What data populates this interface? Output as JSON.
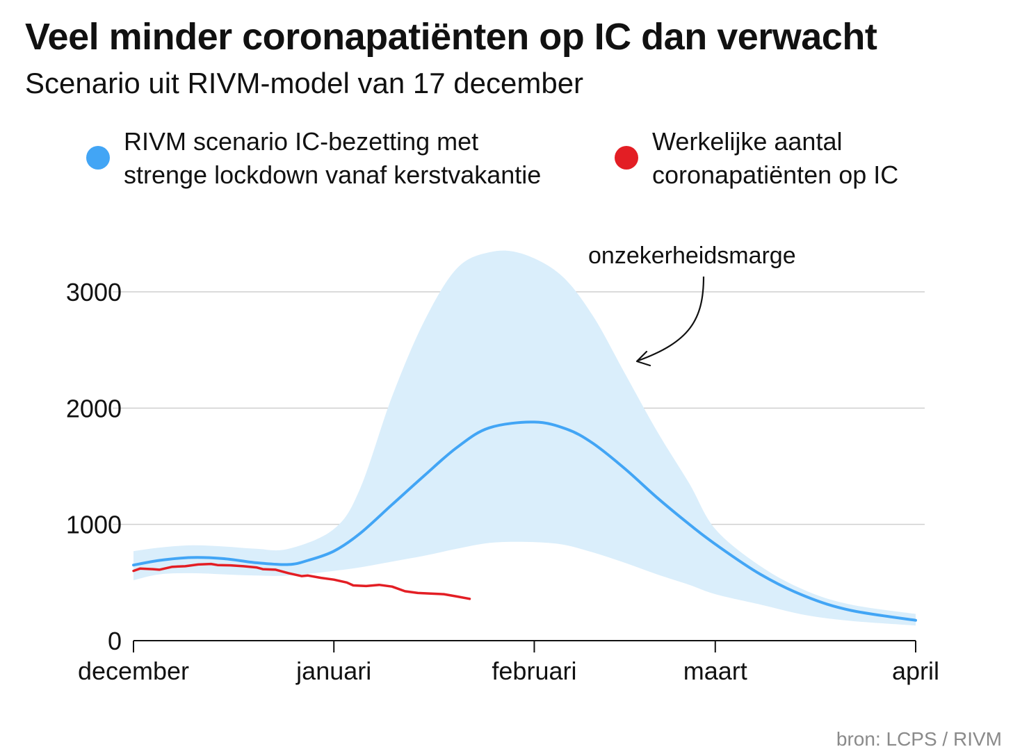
{
  "title": "Veel minder coronapatiënten op IC dan verwacht",
  "subtitle": "Scenario uit RIVM-model van 17 december",
  "legend": [
    {
      "line1": "RIVM scenario IC-bezetting met",
      "line2": "strenge lockdown vanaf kerstvakantie",
      "color": "#42a5f5"
    },
    {
      "line1": "Werkelijke aantal",
      "line2": "coronapatiënten op IC",
      "color": "#e31e24"
    }
  ],
  "annotation": "onzekerheidsmarge",
  "source": "bron: LCPS / RIVM",
  "chart_data": {
    "type": "line",
    "x_unit": "date (2020-12-01 to 2021-04-01)",
    "x_ticks": [
      {
        "label": "december",
        "date": "2020-12-01"
      },
      {
        "label": "januari",
        "date": "2021-01-01"
      },
      {
        "label": "februari",
        "date": "2021-02-01"
      },
      {
        "label": "maart",
        "date": "2021-03-01"
      },
      {
        "label": "april",
        "date": "2021-04-01"
      }
    ],
    "y_ticks": [
      0,
      1000,
      2000,
      3000
    ],
    "ylim": [
      0,
      3400
    ],
    "grid": true,
    "colors": {
      "scenario": "#42a5f5",
      "band": "#daeefb",
      "actual": "#e31e24",
      "grid": "#cfcfcf"
    },
    "uncertainty_band": [
      {
        "date": "2020-12-01",
        "low": 520,
        "high": 770
      },
      {
        "date": "2020-12-05",
        "low": 570,
        "high": 800
      },
      {
        "date": "2020-12-10",
        "low": 580,
        "high": 820
      },
      {
        "date": "2020-12-15",
        "low": 570,
        "high": 810
      },
      {
        "date": "2020-12-20",
        "low": 560,
        "high": 790
      },
      {
        "date": "2020-12-25",
        "low": 560,
        "high": 790
      },
      {
        "date": "2021-01-01",
        "low": 600,
        "high": 960
      },
      {
        "date": "2021-01-05",
        "low": 630,
        "high": 1300
      },
      {
        "date": "2021-01-10",
        "low": 680,
        "high": 2100
      },
      {
        "date": "2021-01-15",
        "low": 730,
        "high": 2750
      },
      {
        "date": "2021-01-20",
        "low": 790,
        "high": 3200
      },
      {
        "date": "2021-01-25",
        "low": 840,
        "high": 3340
      },
      {
        "date": "2021-01-30",
        "low": 850,
        "high": 3330
      },
      {
        "date": "2021-02-05",
        "low": 830,
        "high": 3150
      },
      {
        "date": "2021-02-10",
        "low": 760,
        "high": 2800
      },
      {
        "date": "2021-02-15",
        "low": 670,
        "high": 2300
      },
      {
        "date": "2021-02-20",
        "low": 570,
        "high": 1800
      },
      {
        "date": "2021-02-25",
        "low": 480,
        "high": 1350
      },
      {
        "date": "2021-03-01",
        "low": 400,
        "high": 960
      },
      {
        "date": "2021-03-08",
        "low": 310,
        "high": 640
      },
      {
        "date": "2021-03-15",
        "low": 220,
        "high": 430
      },
      {
        "date": "2021-03-22",
        "low": 170,
        "high": 310
      },
      {
        "date": "2021-04-01",
        "low": 130,
        "high": 230
      }
    ],
    "series": [
      {
        "name": "RIVM scenario IC-bezetting met strenge lockdown vanaf kerstvakantie",
        "points": [
          {
            "date": "2020-12-01",
            "value": 650
          },
          {
            "date": "2020-12-05",
            "value": 690
          },
          {
            "date": "2020-12-10",
            "value": 715
          },
          {
            "date": "2020-12-15",
            "value": 705
          },
          {
            "date": "2020-12-20",
            "value": 670
          },
          {
            "date": "2020-12-25",
            "value": 655
          },
          {
            "date": "2020-12-28",
            "value": 690
          },
          {
            "date": "2021-01-01",
            "value": 770
          },
          {
            "date": "2021-01-05",
            "value": 920
          },
          {
            "date": "2021-01-10",
            "value": 1170
          },
          {
            "date": "2021-01-15",
            "value": 1420
          },
          {
            "date": "2021-01-20",
            "value": 1660
          },
          {
            "date": "2021-01-25",
            "value": 1830
          },
          {
            "date": "2021-02-01",
            "value": 1880
          },
          {
            "date": "2021-02-06",
            "value": 1820
          },
          {
            "date": "2021-02-10",
            "value": 1700
          },
          {
            "date": "2021-02-15",
            "value": 1480
          },
          {
            "date": "2021-02-20",
            "value": 1230
          },
          {
            "date": "2021-02-25",
            "value": 1000
          },
          {
            "date": "2021-03-01",
            "value": 830
          },
          {
            "date": "2021-03-08",
            "value": 570
          },
          {
            "date": "2021-03-15",
            "value": 380
          },
          {
            "date": "2021-03-22",
            "value": 260
          },
          {
            "date": "2021-04-01",
            "value": 175
          }
        ]
      },
      {
        "name": "Werkelijke aantal coronapatiënten op IC",
        "points": [
          {
            "date": "2020-12-01",
            "value": 600
          },
          {
            "date": "2020-12-02",
            "value": 620
          },
          {
            "date": "2020-12-04",
            "value": 615
          },
          {
            "date": "2020-12-05",
            "value": 610
          },
          {
            "date": "2020-12-07",
            "value": 635
          },
          {
            "date": "2020-12-09",
            "value": 640
          },
          {
            "date": "2020-12-11",
            "value": 655
          },
          {
            "date": "2020-12-13",
            "value": 660
          },
          {
            "date": "2020-12-14",
            "value": 650
          },
          {
            "date": "2020-12-16",
            "value": 648
          },
          {
            "date": "2020-12-18",
            "value": 640
          },
          {
            "date": "2020-12-20",
            "value": 630
          },
          {
            "date": "2020-12-21",
            "value": 615
          },
          {
            "date": "2020-12-23",
            "value": 610
          },
          {
            "date": "2020-12-25",
            "value": 580
          },
          {
            "date": "2020-12-27",
            "value": 555
          },
          {
            "date": "2020-12-28",
            "value": 560
          },
          {
            "date": "2020-12-30",
            "value": 540
          },
          {
            "date": "2021-01-01",
            "value": 525
          },
          {
            "date": "2021-01-03",
            "value": 500
          },
          {
            "date": "2021-01-04",
            "value": 475
          },
          {
            "date": "2021-01-06",
            "value": 470
          },
          {
            "date": "2021-01-08",
            "value": 480
          },
          {
            "date": "2021-01-10",
            "value": 465
          },
          {
            "date": "2021-01-12",
            "value": 425
          },
          {
            "date": "2021-01-14",
            "value": 410
          },
          {
            "date": "2021-01-16",
            "value": 405
          },
          {
            "date": "2021-01-18",
            "value": 400
          },
          {
            "date": "2021-01-20",
            "value": 380
          },
          {
            "date": "2021-01-22",
            "value": 360
          }
        ]
      }
    ]
  }
}
